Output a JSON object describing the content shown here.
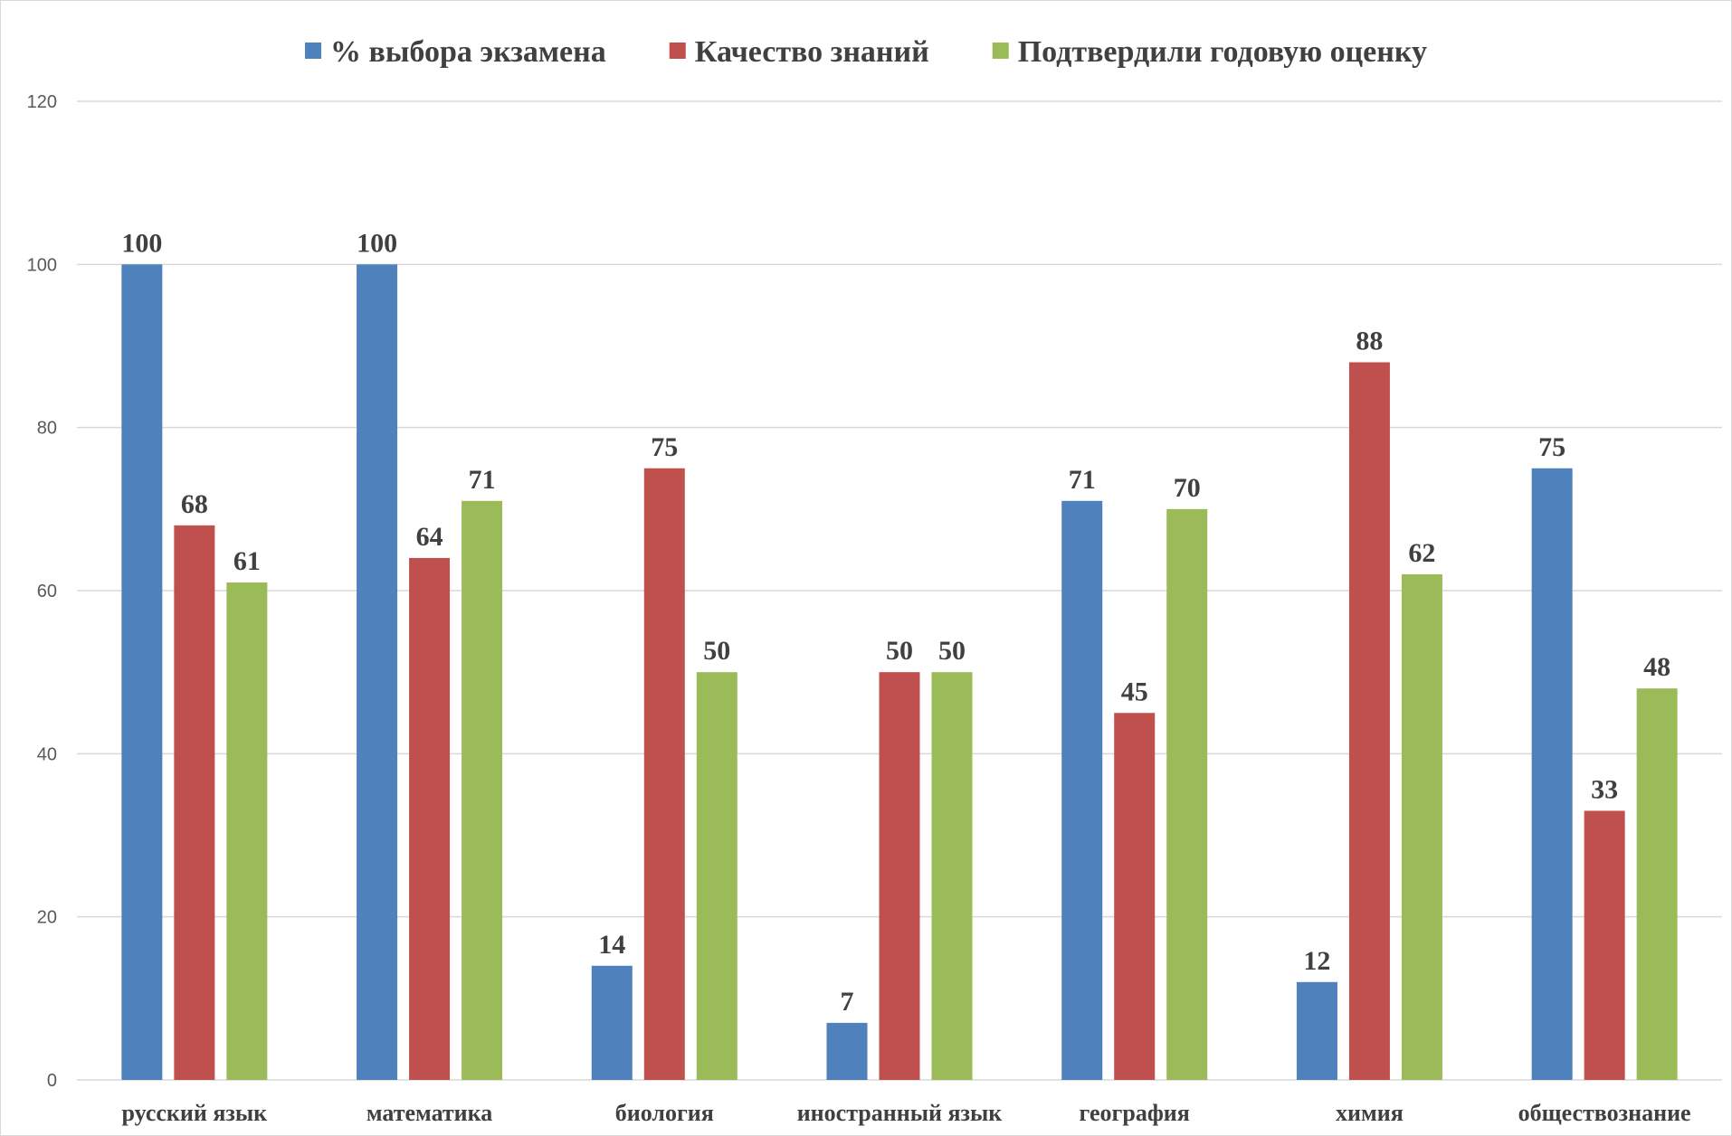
{
  "chart_data": {
    "type": "bar",
    "title": "",
    "xlabel": "",
    "ylabel": "",
    "ylim": [
      0,
      120
    ],
    "yticks": [
      0,
      20,
      40,
      60,
      80,
      100,
      120
    ],
    "grid": true,
    "legend_position": "top",
    "categories": [
      "русский язык",
      "математика",
      "биология",
      "иностранный язык",
      "география",
      "химия",
      "обществознание"
    ],
    "series": [
      {
        "name": "% выбора экзамена",
        "color": "#4f81bd",
        "values": [
          100,
          100,
          14,
          7,
          71,
          12,
          75
        ]
      },
      {
        "name": "Качество знаний",
        "color": "#c0504d",
        "values": [
          68,
          64,
          75,
          50,
          45,
          88,
          33
        ]
      },
      {
        "name": "Подтвердили годовую оценку",
        "color": "#9bbb59",
        "values": [
          61,
          71,
          50,
          50,
          70,
          62,
          48
        ]
      }
    ]
  }
}
